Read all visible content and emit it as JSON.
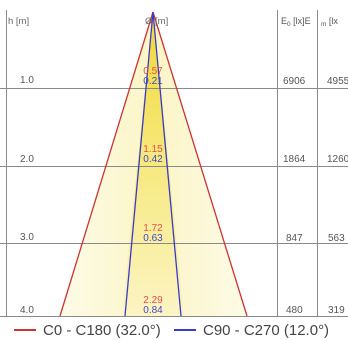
{
  "diagram": {
    "h_label": "h [m]",
    "diameter_label": "Ø [m]",
    "e0_header_a": "E",
    "e0_header_sub": "0",
    "e0_header_b": " [lx]E",
    "em_header_sub": "m",
    "em_header": " [lx",
    "colors": {
      "grid": "#8a8a8a",
      "c0": "#cc3333",
      "c90": "#3a3ad0",
      "beam_light": "#fbf8dc",
      "beam_core": "#f2e04a",
      "red_value": "#e4504a",
      "blue_value": "#4646c8"
    },
    "rows": [
      {
        "h": "1.0",
        "d_c0": "0.57",
        "d_c90": "0.21",
        "e0": "6906",
        "em": "4955"
      },
      {
        "h": "2.0",
        "d_c0": "1.15",
        "d_c90": "0.42",
        "e0": "1864",
        "em": "1260"
      },
      {
        "h": "3.0",
        "d_c0": "1.72",
        "d_c90": "0.63",
        "e0": "847",
        "em": "563"
      },
      {
        "h": "4.0",
        "d_c0": "2.29",
        "d_c90": "0.84",
        "e0": "480",
        "em": "319"
      }
    ]
  },
  "legend": {
    "c0": "C0 - C180 (32.0°)",
    "c90": "C90 - C270 (12.0°)"
  }
}
